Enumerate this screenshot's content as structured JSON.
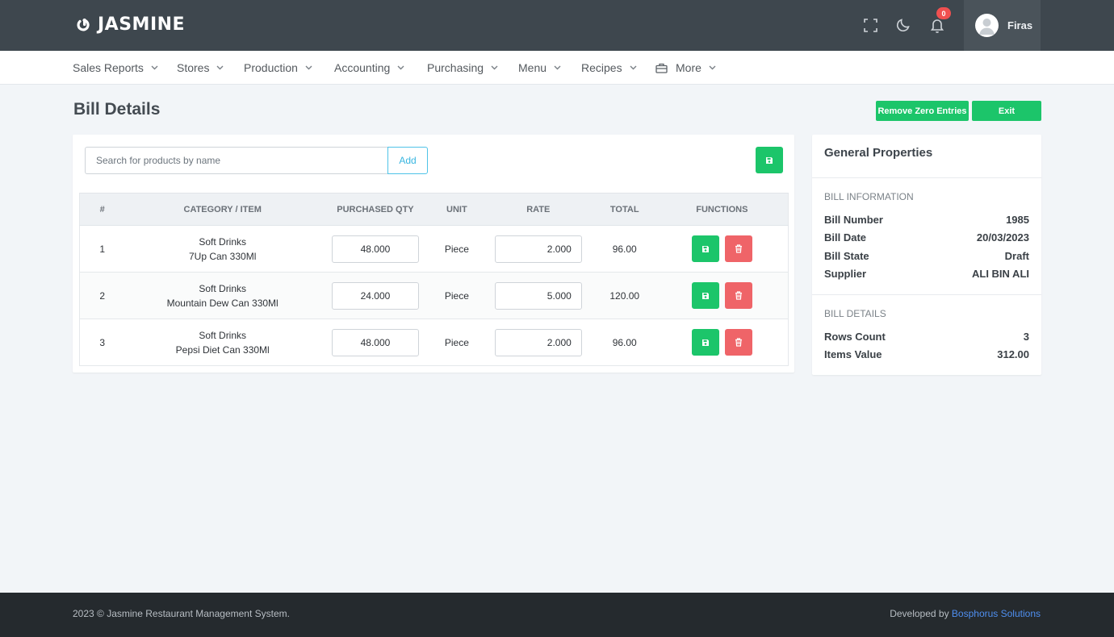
{
  "app": {
    "logo_text": "JASMINE",
    "user_name": "Firas",
    "notification_count": "0"
  },
  "nav": {
    "items": [
      {
        "label": "Sales Reports"
      },
      {
        "label": "Stores"
      },
      {
        "label": "Production"
      },
      {
        "label": "Accounting"
      },
      {
        "label": "Purchasing"
      },
      {
        "label": "Menu"
      },
      {
        "label": "Recipes"
      },
      {
        "label": "More"
      }
    ]
  },
  "page": {
    "title": "Bill Details",
    "remove_zero_label": "Remove Zero Entries",
    "exit_label": "Exit"
  },
  "search": {
    "placeholder": "Search for products by name",
    "value": "",
    "add_label": "Add"
  },
  "table": {
    "headers": [
      "#",
      "CATEGORY / ITEM",
      "PURCHASED QTY",
      "UNIT",
      "RATE",
      "TOTAL",
      "FUNCTIONS"
    ],
    "rows": [
      {
        "index": "1",
        "category": "Soft Drinks",
        "item": "7Up Can 330Ml",
        "qty": "48.000",
        "unit": "Piece",
        "rate": "2.000",
        "total": "96.00"
      },
      {
        "index": "2",
        "category": "Soft Drinks",
        "item": "Mountain Dew Can 330Ml",
        "qty": "24.000",
        "unit": "Piece",
        "rate": "5.000",
        "total": "120.00"
      },
      {
        "index": "3",
        "category": "Soft Drinks",
        "item": "Pepsi Diet Can 330Ml",
        "qty": "48.000",
        "unit": "Piece",
        "rate": "2.000",
        "total": "96.00"
      }
    ]
  },
  "side": {
    "title": "General Properties",
    "bill_info_label": "BILL INFORMATION",
    "bill_number_label": "Bill Number",
    "bill_number": "1985",
    "bill_date_label": "Bill Date",
    "bill_date": "20/03/2023",
    "bill_state_label": "Bill State",
    "bill_state": "Draft",
    "supplier_label": "Supplier",
    "supplier": "ALI BIN ALI",
    "bill_details_label": "BILL DETAILS",
    "rows_count_label": "Rows Count",
    "rows_count": "3",
    "items_value_label": "Items Value",
    "items_value": "312.00"
  },
  "footer": {
    "copyright": "2023 © Jasmine Restaurant Management System.",
    "developed_by": "Developed by ",
    "developer": "Bosphorus Solutions"
  },
  "colors": {
    "topbar": "#3e474e",
    "accent_green": "#1cc56a",
    "danger_red": "#ef6468",
    "badge_red": "#f05050",
    "footer": "#252a2e",
    "link_blue": "#4f8ff0"
  },
  "icons": {
    "logo": "logo-mark-icon",
    "fullscreen": "fullscreen-icon",
    "theme": "moon-icon",
    "notifications": "bell-icon",
    "user": "user-avatar-icon",
    "save": "floppy-disk-icon",
    "delete": "trash-icon",
    "dropdown": "chevron-down-icon",
    "more": "briefcase-icon"
  }
}
